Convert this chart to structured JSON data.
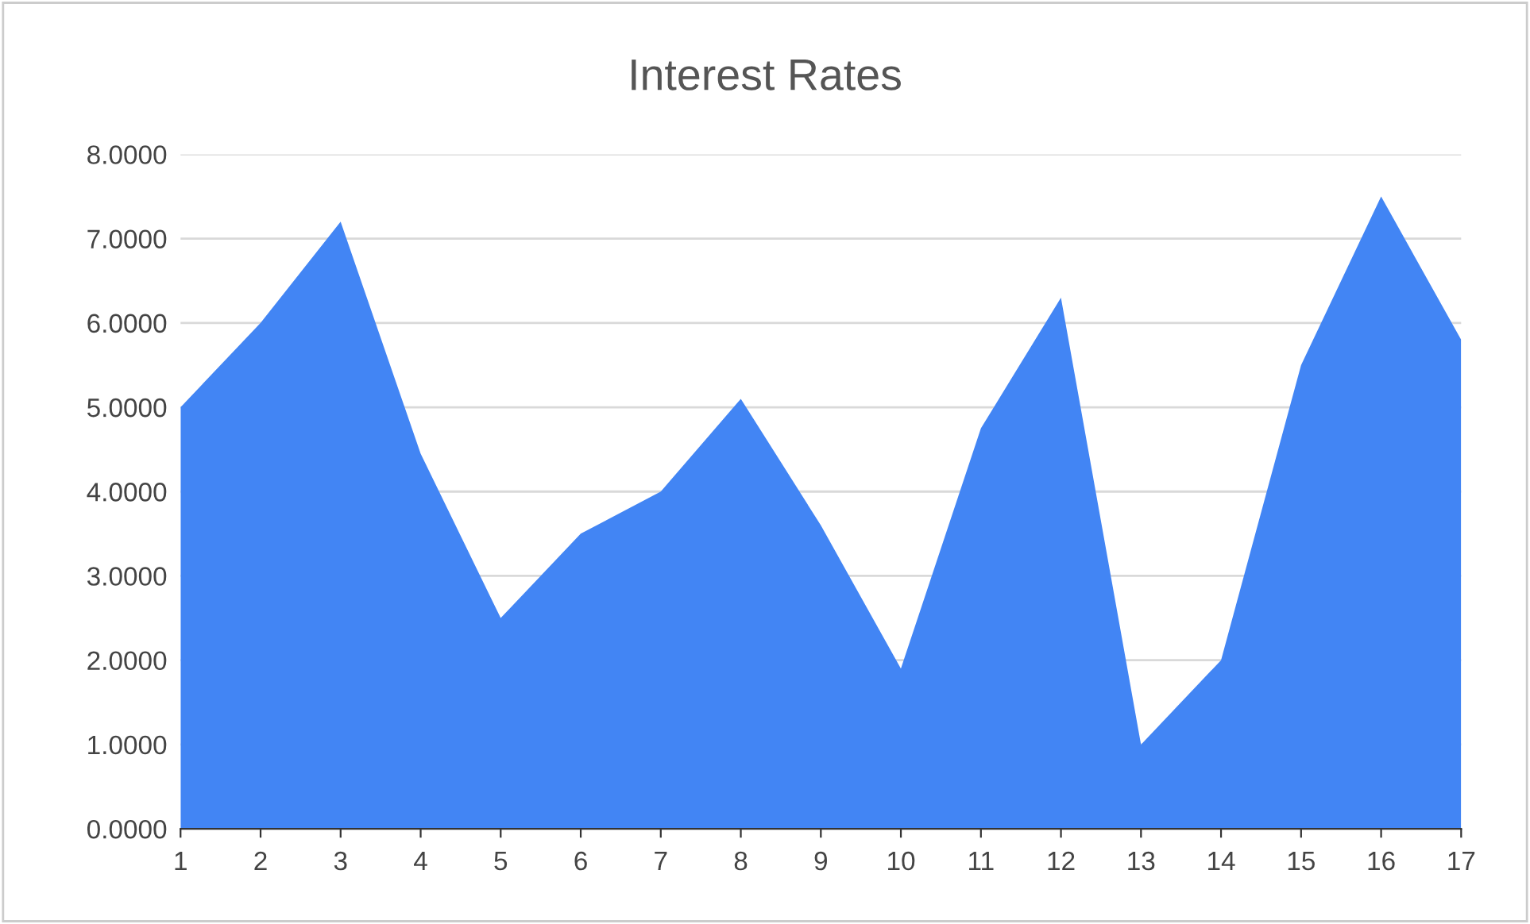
{
  "chart_data": {
    "type": "area",
    "title": "Interest Rates",
    "categories": [
      "1",
      "2",
      "3",
      "4",
      "5",
      "6",
      "7",
      "8",
      "9",
      "10",
      "11",
      "12",
      "13",
      "14",
      "15",
      "16",
      "17"
    ],
    "series": [
      {
        "color": "#4285f4",
        "values": [
          5.0,
          6.0,
          7.2,
          4.45,
          2.5,
          3.5,
          4.0,
          5.1,
          3.6,
          1.9,
          4.75,
          6.3,
          1.0,
          2.0,
          5.5,
          7.5,
          5.8
        ]
      }
    ],
    "ylim": [
      0,
      8
    ],
    "yticks": [
      {
        "value": 0,
        "label": "0.0000"
      },
      {
        "value": 1,
        "label": "1.0000"
      },
      {
        "value": 2,
        "label": "2.0000"
      },
      {
        "value": 3,
        "label": "3.0000"
      },
      {
        "value": 4,
        "label": "4.0000"
      },
      {
        "value": 5,
        "label": "5.0000"
      },
      {
        "value": 6,
        "label": "6.0000"
      },
      {
        "value": 7,
        "label": "7.0000"
      },
      {
        "value": 8,
        "label": "8.0000"
      }
    ],
    "grid": "y"
  }
}
